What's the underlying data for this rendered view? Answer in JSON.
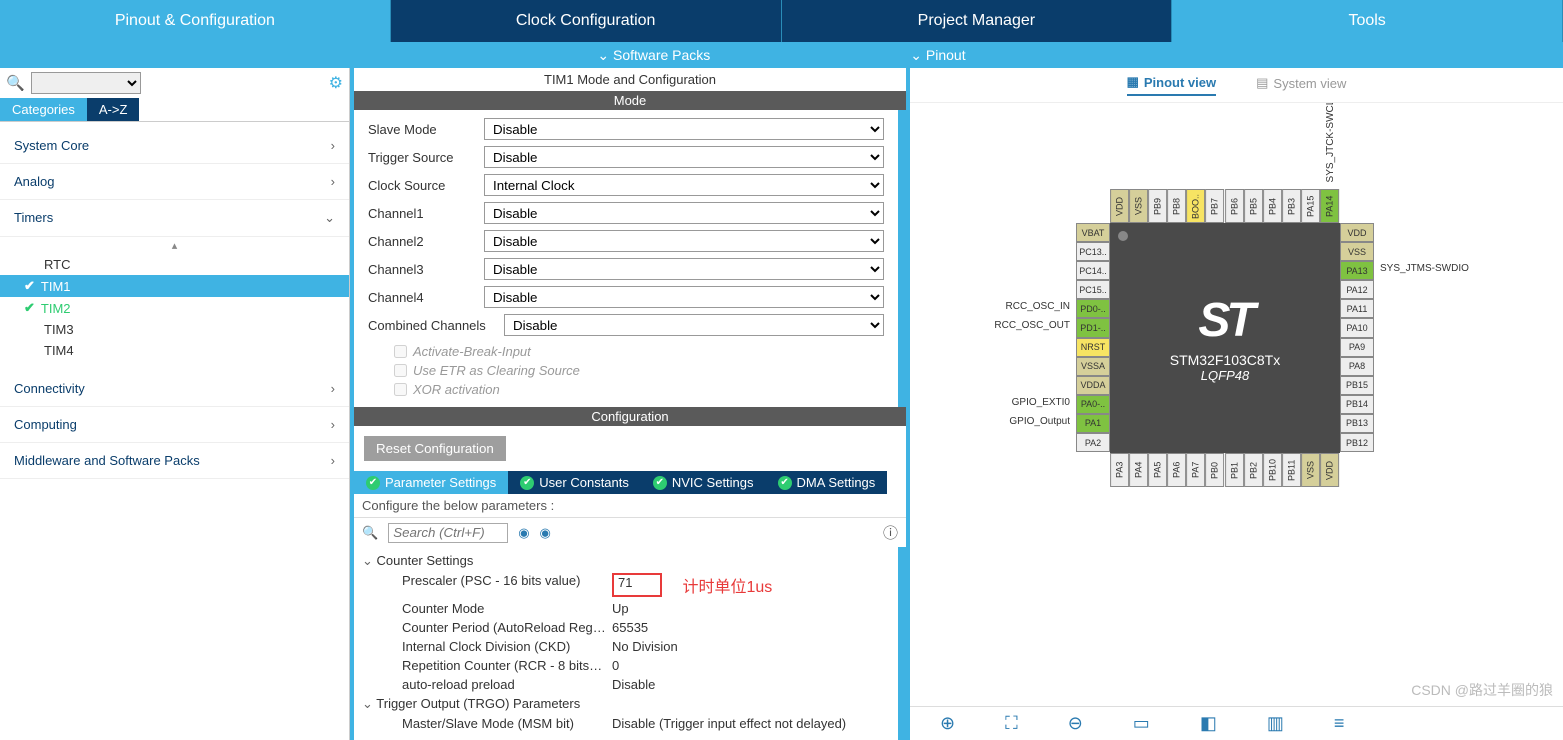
{
  "main_tabs": [
    "Pinout & Configuration",
    "Clock Configuration",
    "Project Manager",
    "Tools"
  ],
  "sub_bar": {
    "packs": "Software Packs",
    "pinout": "Pinout"
  },
  "cat_tabs": [
    "Categories",
    "A->Z"
  ],
  "categories": {
    "system": "System Core",
    "analog": "Analog",
    "timers": "Timers",
    "conn": "Connectivity",
    "comp": "Computing",
    "mw": "Middleware and Software Packs"
  },
  "timers": [
    "RTC",
    "TIM1",
    "TIM2",
    "TIM3",
    "TIM4"
  ],
  "mid_title": "TIM1 Mode and Configuration",
  "mode_hdr": "Mode",
  "cfg_hdr": "Configuration",
  "mode": {
    "slave": {
      "label": "Slave Mode",
      "value": "Disable"
    },
    "trig": {
      "label": "Trigger Source",
      "value": "Disable"
    },
    "clk": {
      "label": "Clock Source",
      "value": "Internal Clock"
    },
    "ch1": {
      "label": "Channel1",
      "value": "Disable"
    },
    "ch2": {
      "label": "Channel2",
      "value": "Disable"
    },
    "ch3": {
      "label": "Channel3",
      "value": "Disable"
    },
    "ch4": {
      "label": "Channel4",
      "value": "Disable"
    },
    "comb": {
      "label": "Combined Channels",
      "value": "Disable"
    },
    "brk": "Activate-Break-Input",
    "etr": "Use ETR as Clearing Source",
    "xor": "XOR activation"
  },
  "reset_btn": "Reset Configuration",
  "cfg_tabs": [
    "Parameter Settings",
    "User Constants",
    "NVIC Settings",
    "DMA Settings"
  ],
  "cfg_hint": "Configure the below parameters :",
  "search_ph": "Search (Ctrl+F)",
  "params": {
    "hdr1": "Counter Settings",
    "psc": {
      "k": "Prescaler (PSC - 16 bits value)",
      "v": "71"
    },
    "annot": "计时单位1us",
    "mode": {
      "k": "Counter Mode",
      "v": "Up"
    },
    "per": {
      "k": "Counter Period (AutoReload Reg…",
      "v": "65535"
    },
    "ckd": {
      "k": "Internal Clock Division (CKD)",
      "v": "No Division"
    },
    "rcr": {
      "k": "Repetition Counter (RCR - 8 bits…",
      "v": "0"
    },
    "arp": {
      "k": "auto-reload preload",
      "v": "Disable"
    },
    "hdr2": "Trigger Output (TRGO) Parameters",
    "msm": {
      "k": "Master/Slave Mode (MSM bit)",
      "v": "Disable (Trigger input effect not delayed)"
    }
  },
  "view_tabs": {
    "pin": "Pinout view",
    "sys": "System view"
  },
  "chip": {
    "logo": "ST",
    "name": "STM32F103C8Tx",
    "pkg": "LQFP48"
  },
  "pins": {
    "left": [
      "VBAT",
      "PC13..",
      "PC14..",
      "PC15..",
      "PD0-..",
      "PD1-..",
      "NRST",
      "VSSA",
      "VDDA",
      "PA0-..",
      "PA1",
      "PA2"
    ],
    "right": [
      "VDD",
      "VSS",
      "PA13",
      "PA12",
      "PA11",
      "PA10",
      "PA9",
      "PA8",
      "PB15",
      "PB14",
      "PB13",
      "PB12"
    ],
    "top": [
      "VDD",
      "VSS",
      "PB9",
      "PB8",
      "BOO..",
      "PB7",
      "PB6",
      "PB5",
      "PB4",
      "PB3",
      "PA15",
      "PA14"
    ],
    "bot": [
      "PA3",
      "PA4",
      "PA5",
      "PA6",
      "PA7",
      "PB0",
      "PB1",
      "PB2",
      "PB10",
      "PB11",
      "VSS",
      "VDD"
    ]
  },
  "pin_labels": {
    "swclk": "SYS_JTCK-SWCLK",
    "swdio": "SYS_JTMS-SWDIO",
    "oscin": "RCC_OSC_IN",
    "oscout": "RCC_OSC_OUT",
    "exti0": "GPIO_EXTI0",
    "gpout": "GPIO_Output"
  },
  "watermark": "CSDN @路过羊圈的狼"
}
